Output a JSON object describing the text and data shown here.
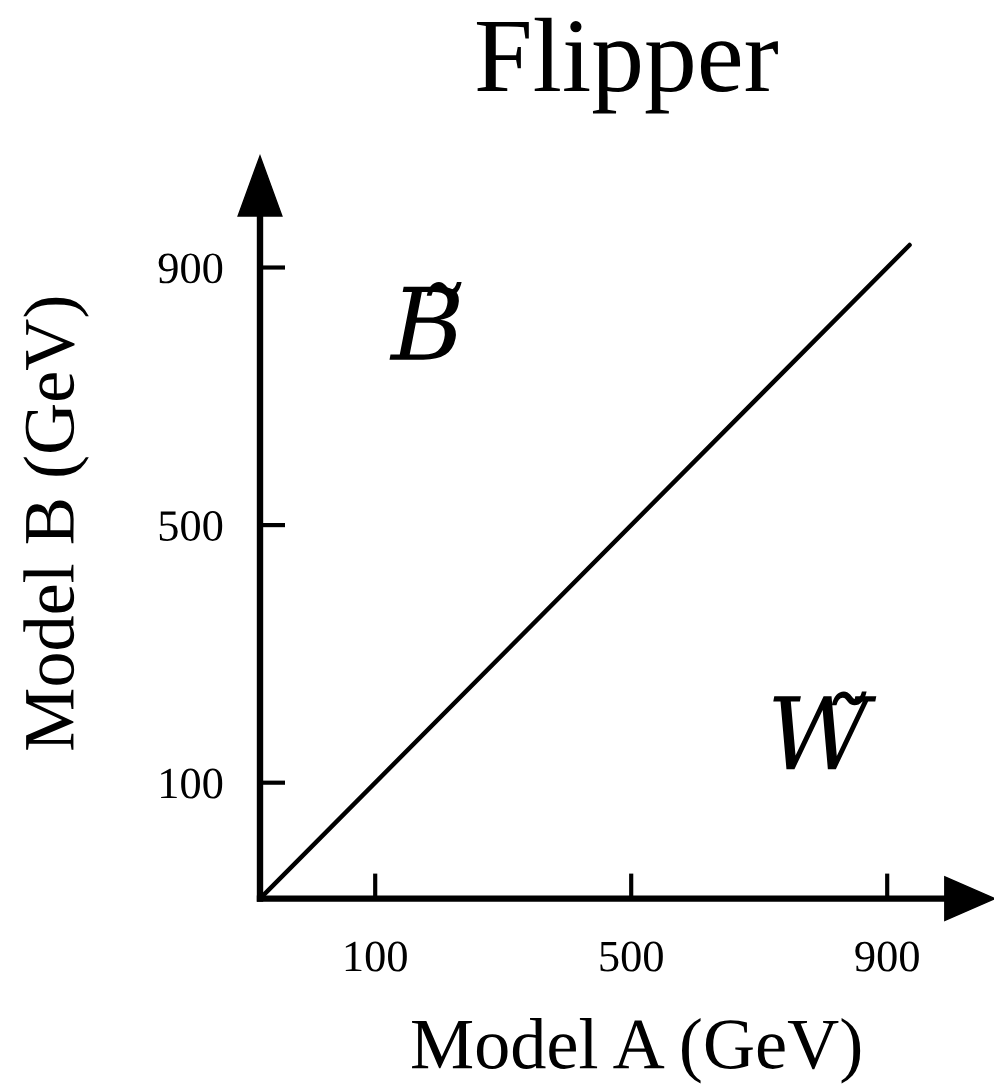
{
  "chart_data": {
    "type": "line",
    "title": "Flipper",
    "xlabel": "Model A (GeV)",
    "ylabel": "Model B (GeV)",
    "x": [
      -80,
      935
    ],
    "series": [
      {
        "color": "#000000",
        "values": [
          -80,
          935
        ]
      }
    ],
    "xlim": [
      -80,
      990
    ],
    "ylim": [
      -80,
      980
    ],
    "xticks": [
      100,
      500,
      900
    ],
    "yticks": [
      100,
      500,
      900
    ],
    "line_style": "solid",
    "annotations": [
      "B̃",
      "W̃"
    ]
  }
}
